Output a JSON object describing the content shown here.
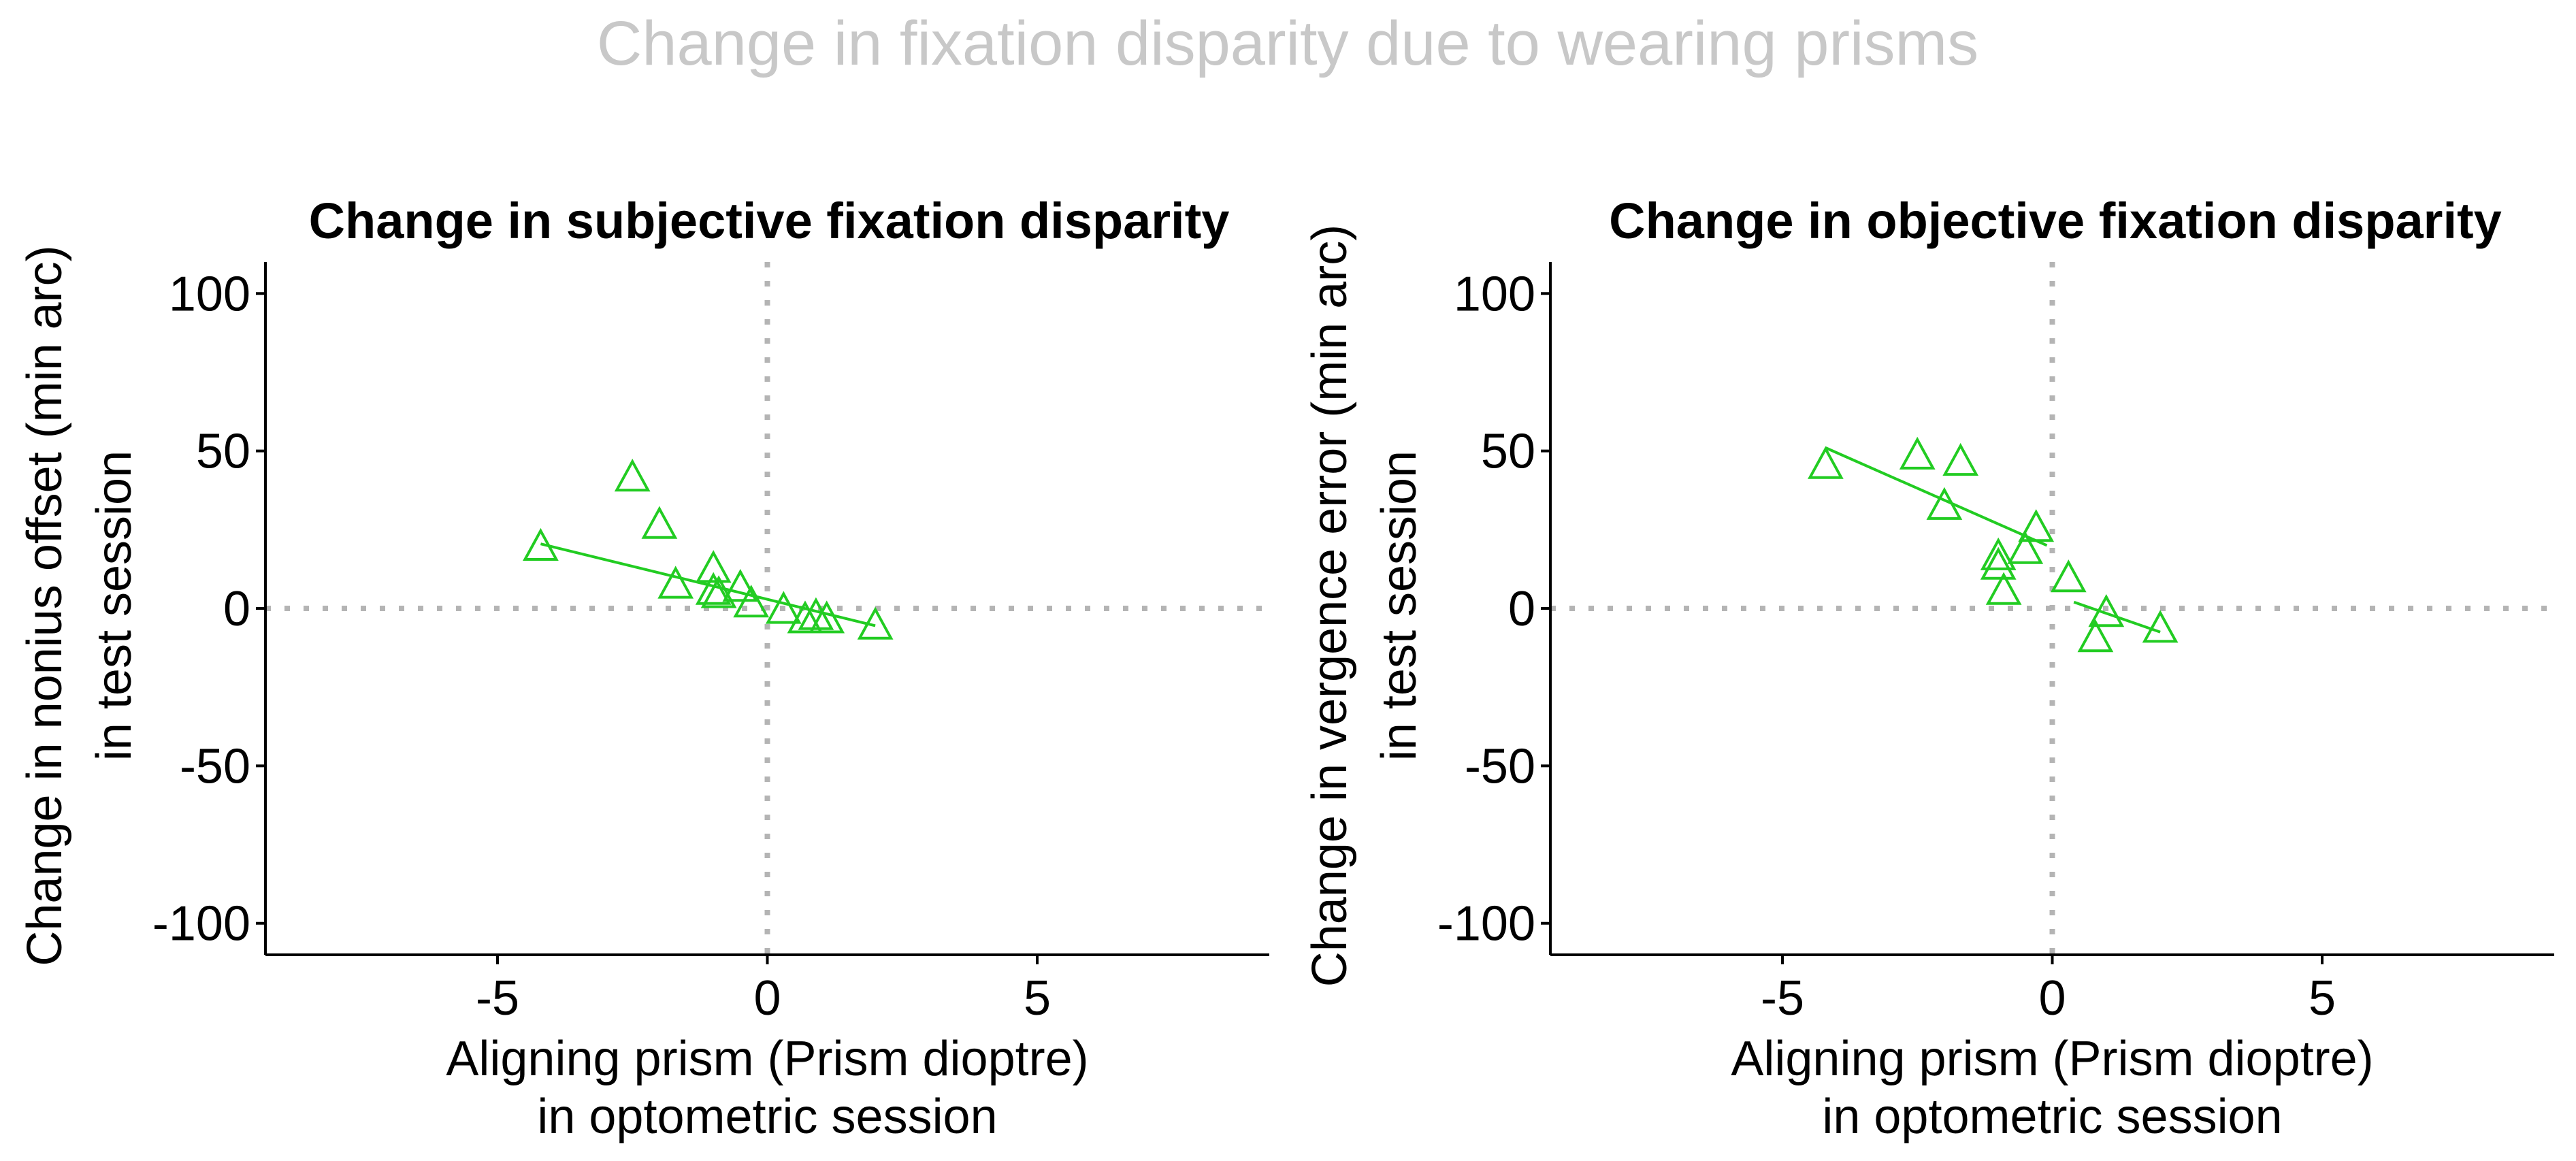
{
  "figure_title": "Change in fixation disparity due to wearing prisms",
  "colors": {
    "title": "#c8c8c8",
    "series": "#22cc22",
    "reference_line": "#b4b4b4",
    "axis": "#000000"
  },
  "chart_data": [
    {
      "type": "scatter",
      "title": "Change in subjective fixation disparity",
      "xlabel_line1": "Aligning prism (Prism dioptre)",
      "xlabel_line2": "in optometric session",
      "ylabel_line1": "Change in nonius offset (min arc)",
      "ylabel_line2": "in test session",
      "xlim": [
        -9.3,
        9.3
      ],
      "ylim": [
        -110,
        110
      ],
      "xticks": [
        -5,
        0,
        5
      ],
      "yticks": [
        -100,
        -50,
        0,
        50,
        100
      ],
      "xtick_labels": [
        "-5",
        "0",
        "5"
      ],
      "ytick_labels": [
        "-100",
        "-50",
        "0",
        "50",
        "100"
      ],
      "reference_lines": {
        "x": 0,
        "y": 0
      },
      "marker": "triangle-open",
      "points": [
        {
          "x": -4.2,
          "y": 19
        },
        {
          "x": -2.5,
          "y": 41
        },
        {
          "x": -2.0,
          "y": 26
        },
        {
          "x": -1.7,
          "y": 7
        },
        {
          "x": -1.0,
          "y": 12
        },
        {
          "x": -1.0,
          "y": 5
        },
        {
          "x": -0.9,
          "y": 4
        },
        {
          "x": -0.5,
          "y": 6
        },
        {
          "x": -0.3,
          "y": 1
        },
        {
          "x": 0.3,
          "y": -1
        },
        {
          "x": 0.7,
          "y": -4
        },
        {
          "x": 0.9,
          "y": -3
        },
        {
          "x": 1.1,
          "y": -4
        },
        {
          "x": 2.0,
          "y": -6
        }
      ],
      "fit_lines": [
        {
          "x": [
            -4.2,
            2.0
          ],
          "y": [
            20.5,
            -5.5
          ]
        }
      ]
    },
    {
      "type": "scatter",
      "title": "Change in objective fixation disparity",
      "xlabel_line1": "Aligning prism (Prism dioptre)",
      "xlabel_line2": "in optometric session",
      "ylabel_line1": "Change in vergence error (min arc)",
      "ylabel_line2": "in test session",
      "xlim": [
        -9.3,
        9.3
      ],
      "ylim": [
        -110,
        110
      ],
      "xticks": [
        -5,
        0,
        5
      ],
      "yticks": [
        -100,
        -50,
        0,
        50,
        100
      ],
      "xtick_labels": [
        "-5",
        "0",
        "5"
      ],
      "ytick_labels": [
        "-100",
        "-50",
        "0",
        "50",
        "100"
      ],
      "reference_lines": {
        "x": 0,
        "y": 0
      },
      "marker": "triangle-open",
      "points": [
        {
          "x": -4.2,
          "y": 45
        },
        {
          "x": -2.5,
          "y": 48
        },
        {
          "x": -1.7,
          "y": 46
        },
        {
          "x": -2.0,
          "y": 32
        },
        {
          "x": -1.0,
          "y": 16
        },
        {
          "x": -1.0,
          "y": 13
        },
        {
          "x": -0.9,
          "y": 5
        },
        {
          "x": -0.5,
          "y": 18
        },
        {
          "x": -0.3,
          "y": 25
        },
        {
          "x": 0.3,
          "y": 9
        },
        {
          "x": 0.8,
          "y": -10
        },
        {
          "x": 1.0,
          "y": -2
        },
        {
          "x": 2.0,
          "y": -7
        }
      ],
      "fit_lines": [
        {
          "x": [
            -4.2,
            -0.1
          ],
          "y": [
            51,
            20
          ]
        },
        {
          "x": [
            0.4,
            2.0
          ],
          "y": [
            2,
            -7.5
          ]
        }
      ]
    }
  ]
}
